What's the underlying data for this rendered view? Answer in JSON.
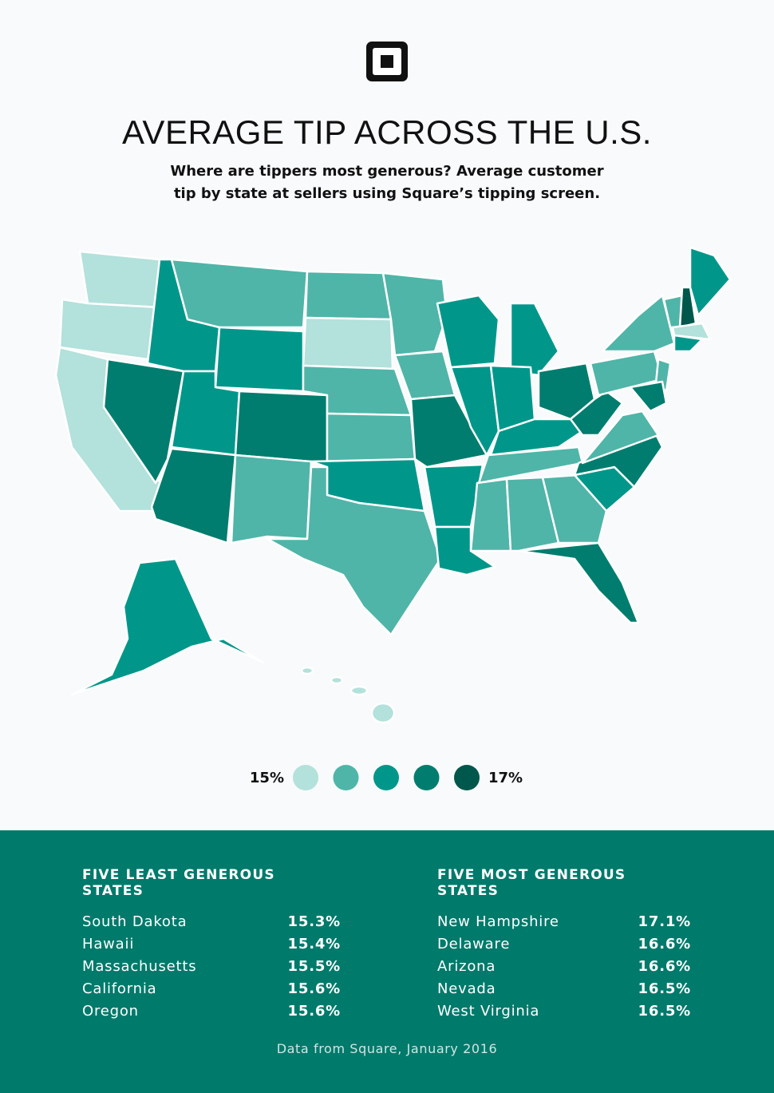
{
  "header": {
    "title": "AVERAGE TIP ACROSS THE U.S.",
    "subtitle_lines": [
      "Where are tippers most generous? Average customer",
      "tip by state at sellers using Square’s tipping screen."
    ]
  },
  "legend": {
    "low": "15%",
    "high": "17%",
    "colors": [
      "#b3e1db",
      "#4fb5a8",
      "#00978a",
      "#007d6e",
      "#00574b"
    ]
  },
  "least": {
    "title": "FIVE LEAST GENEROUS STATES",
    "rows": [
      [
        "South Dakota",
        "15.3%"
      ],
      [
        "Hawaii",
        "15.4%"
      ],
      [
        "Massachusetts",
        "15.5%"
      ],
      [
        "California",
        "15.6%"
      ],
      [
        "Oregon",
        "15.6%"
      ]
    ]
  },
  "most": {
    "title": "FIVE MOST GENEROUS STATES",
    "rows": [
      [
        "New Hampshire",
        "17.1%"
      ],
      [
        "Delaware",
        "16.6%"
      ],
      [
        "Arizona",
        "16.6%"
      ],
      [
        "Nevada",
        "16.5%"
      ],
      [
        "West Virginia",
        "16.5%"
      ]
    ]
  },
  "footer": {
    "source": "Data from Square, January 2016"
  }
}
